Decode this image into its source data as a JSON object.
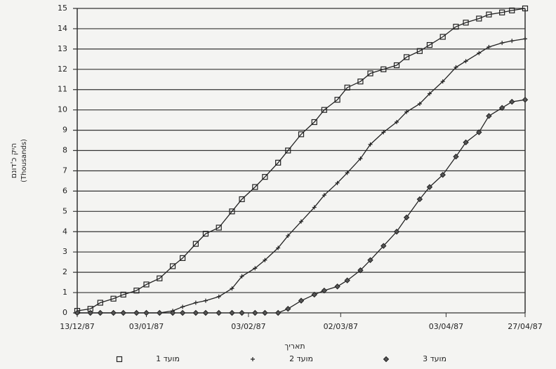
{
  "chart_data": {
    "type": "line",
    "y_label": "היק כ'דונם",
    "y_label_sub": "(Thousands)",
    "x_label": "תאריך",
    "x": [
      0,
      4,
      7,
      11,
      14,
      18,
      21,
      25,
      29,
      32,
      36,
      39,
      43,
      47,
      50,
      54,
      57,
      61,
      64,
      68,
      72,
      75,
      79,
      82,
      86,
      89,
      93,
      97,
      100,
      104,
      107,
      111,
      115,
      118,
      122,
      125,
      129,
      132,
      136
    ],
    "series": [
      {
        "name": "מועד 1",
        "color": "#222222",
        "marker": "square",
        "values": [
          0.1,
          0.2,
          0.5,
          0.7,
          0.9,
          1.1,
          1.4,
          1.7,
          2.3,
          2.7,
          3.4,
          3.9,
          4.2,
          5,
          5.6,
          6.2,
          6.7,
          7.4,
          8,
          8.8,
          9.4,
          10,
          10.5,
          11.1,
          11.4,
          11.8,
          12,
          12.2,
          12.6,
          12.9,
          13.2,
          13.6,
          14.1,
          14.3,
          14.5,
          14.7,
          14.8,
          14.9,
          15
        ]
      },
      {
        "name": "מועד 2",
        "color": "#222222",
        "marker": "plus",
        "values": [
          0,
          0,
          0,
          0,
          0,
          0,
          0,
          0,
          0.1,
          0.3,
          0.5,
          0.6,
          0.8,
          1.2,
          1.8,
          2.2,
          2.6,
          3.2,
          3.8,
          4.5,
          5.2,
          5.8,
          6.4,
          6.9,
          7.6,
          8.3,
          8.9,
          9.4,
          9.9,
          10.3,
          10.8,
          11.4,
          12.1,
          12.4,
          12.8,
          13.1,
          13.3,
          13.4,
          13.5
        ]
      },
      {
        "name": "מועד 3",
        "color": "#222222",
        "marker": "diamond",
        "values": [
          0,
          0,
          0,
          0,
          0,
          0,
          0,
          0,
          0,
          0,
          0,
          0,
          0,
          0,
          0,
          0,
          0,
          0,
          0.2,
          0.6,
          0.9,
          1.1,
          1.3,
          1.6,
          2.1,
          2.6,
          3.3,
          4,
          4.7,
          5.6,
          6.2,
          6.8,
          7.7,
          8.4,
          8.9,
          9.7,
          10.1,
          10.4,
          10.5
        ]
      }
    ],
    "xlim": [
      0,
      136
    ],
    "xticks": [
      {
        "value": 0,
        "label": "13/12/87"
      },
      {
        "value": 21,
        "label": "03/01/87"
      },
      {
        "value": 52,
        "label": "03/02/87"
      },
      {
        "value": 80,
        "label": "02/03/87"
      },
      {
        "value": 112,
        "label": "03/04/87"
      },
      {
        "value": 136,
        "label": "27/04/87"
      }
    ],
    "ylim": [
      0,
      15
    ],
    "yticks": [
      0,
      1,
      2,
      3,
      4,
      5,
      6,
      7,
      8,
      9,
      10,
      11,
      12,
      13,
      14,
      15
    ],
    "grid": true
  }
}
